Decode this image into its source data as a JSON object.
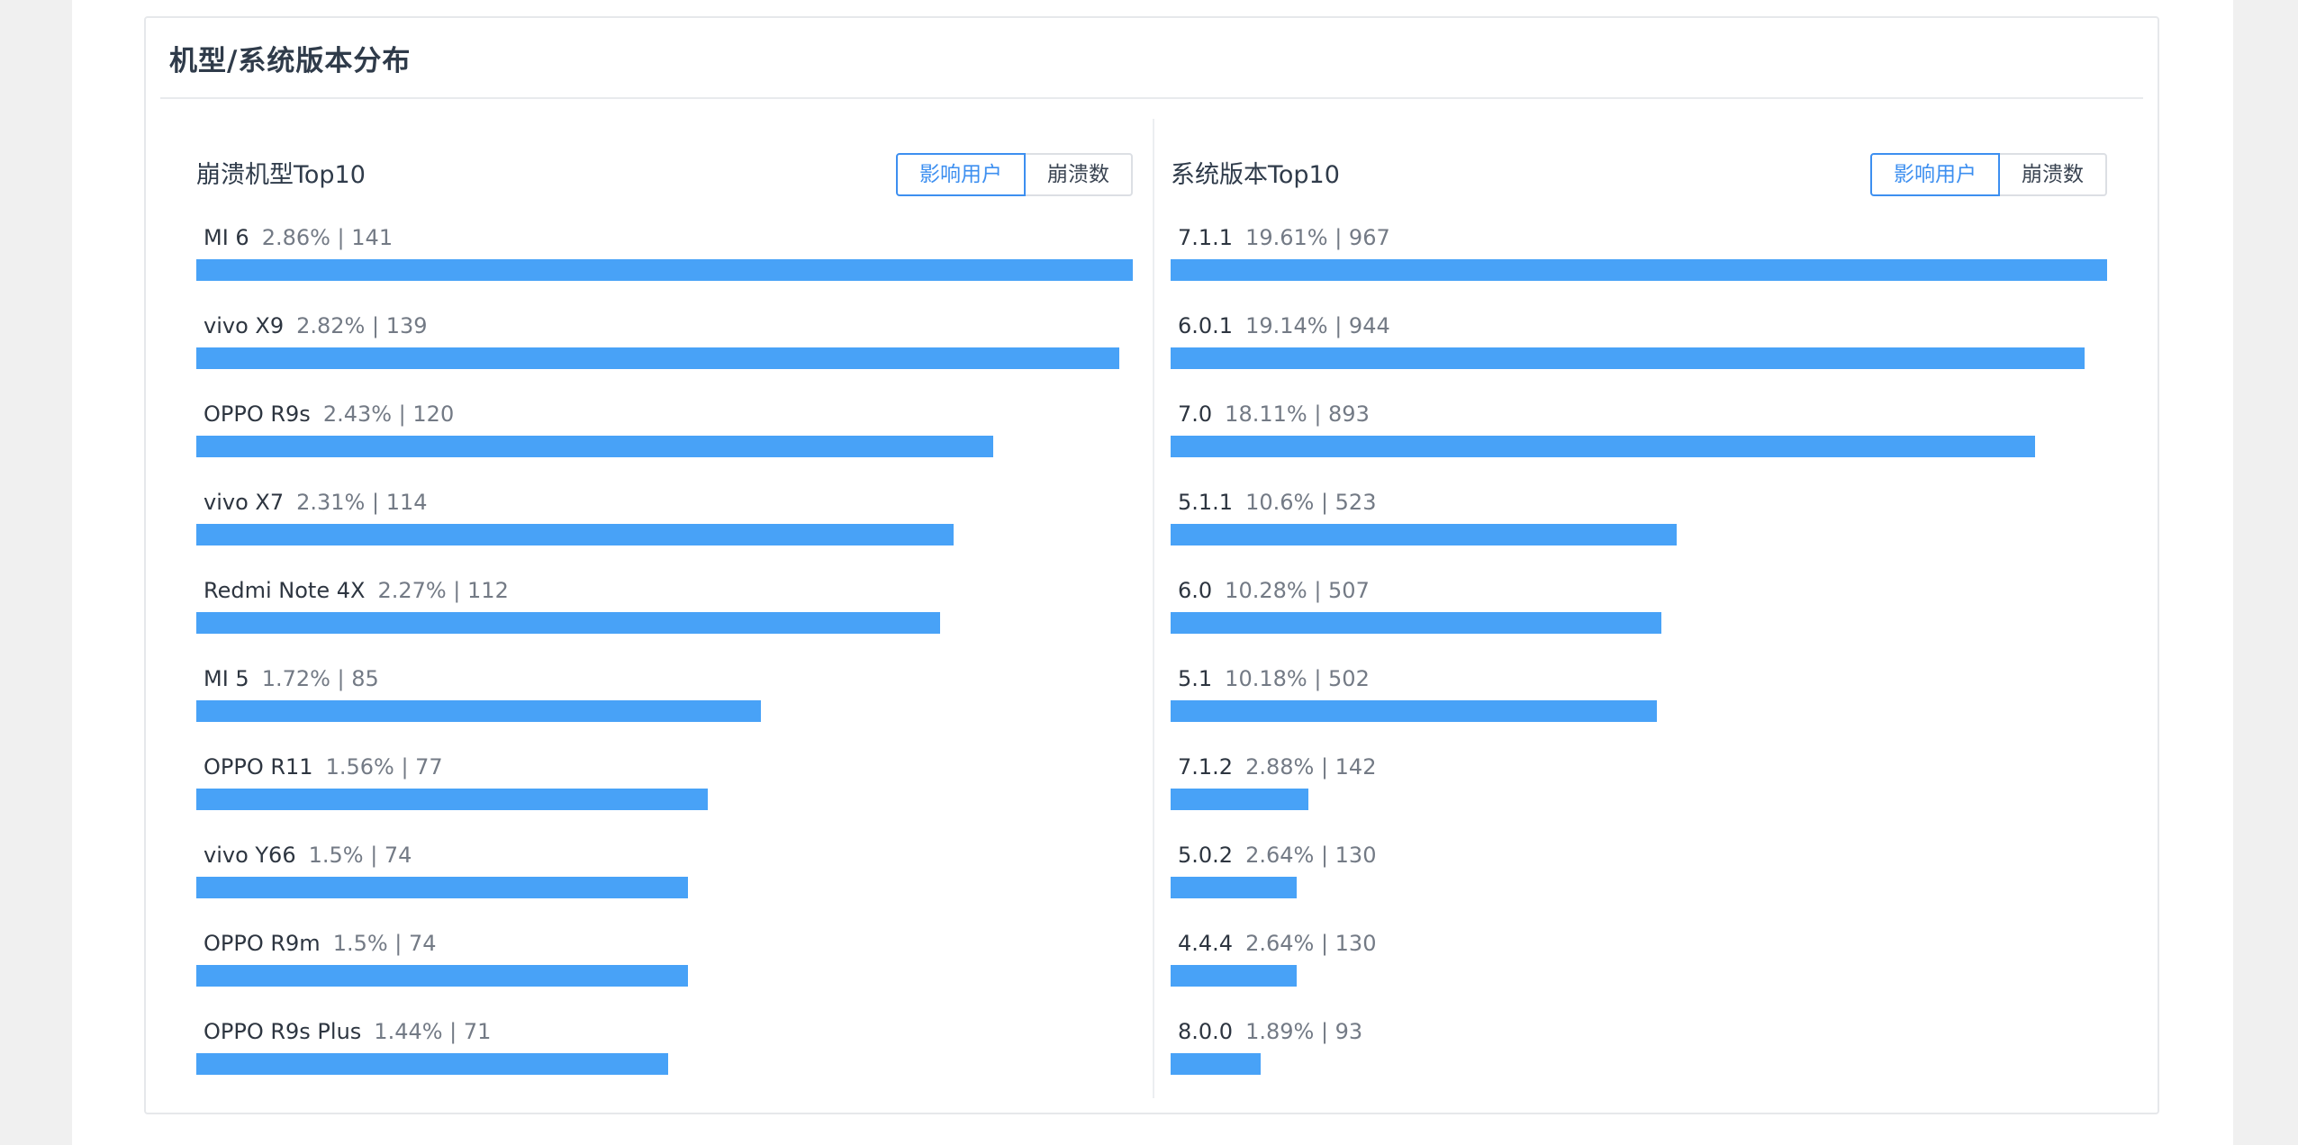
{
  "card": {
    "title": "机型/系统版本分布"
  },
  "colors": {
    "bar": "#48a2f7",
    "accent": "#3d8ff0"
  },
  "chart_data": [
    {
      "type": "bar",
      "orientation": "horizontal",
      "title": "崩溃机型Top10",
      "toggle": {
        "active": "影响用户",
        "other": "崩溃数"
      },
      "max": 141,
      "items": [
        {
          "name": "MI 6",
          "stats": "2.86% | 141",
          "percent": 2.86,
          "value": 141
        },
        {
          "name": "vivo X9",
          "stats": "2.82% | 139",
          "percent": 2.82,
          "value": 139
        },
        {
          "name": "OPPO R9s",
          "stats": "2.43% | 120",
          "percent": 2.43,
          "value": 120
        },
        {
          "name": "vivo X7",
          "stats": "2.31% | 114",
          "percent": 2.31,
          "value": 114
        },
        {
          "name": "Redmi Note 4X",
          "stats": "2.27% | 112",
          "percent": 2.27,
          "value": 112
        },
        {
          "name": "MI 5",
          "stats": "1.72% | 85",
          "percent": 1.72,
          "value": 85
        },
        {
          "name": "OPPO R11",
          "stats": "1.56% | 77",
          "percent": 1.56,
          "value": 77
        },
        {
          "name": "vivo Y66",
          "stats": "1.5% | 74",
          "percent": 1.5,
          "value": 74
        },
        {
          "name": "OPPO R9m",
          "stats": "1.5% | 74",
          "percent": 1.5,
          "value": 74
        },
        {
          "name": "OPPO R9s Plus",
          "stats": "1.44% | 71",
          "percent": 1.44,
          "value": 71
        }
      ]
    },
    {
      "type": "bar",
      "orientation": "horizontal",
      "title": "系统版本Top10",
      "toggle": {
        "active": "影响用户",
        "other": "崩溃数"
      },
      "max": 967,
      "items": [
        {
          "name": "7.1.1",
          "stats": "19.61% | 967",
          "percent": 19.61,
          "value": 967
        },
        {
          "name": "6.0.1",
          "stats": "19.14% | 944",
          "percent": 19.14,
          "value": 944
        },
        {
          "name": "7.0",
          "stats": "18.11% | 893",
          "percent": 18.11,
          "value": 893
        },
        {
          "name": "5.1.1",
          "stats": "10.6% | 523",
          "percent": 10.6,
          "value": 523
        },
        {
          "name": "6.0",
          "stats": "10.28% | 507",
          "percent": 10.28,
          "value": 507
        },
        {
          "name": "5.1",
          "stats": "10.18% | 502",
          "percent": 10.18,
          "value": 502
        },
        {
          "name": "7.1.2",
          "stats": "2.88% | 142",
          "percent": 2.88,
          "value": 142
        },
        {
          "name": "5.0.2",
          "stats": "2.64% | 130",
          "percent": 2.64,
          "value": 130
        },
        {
          "name": "4.4.4",
          "stats": "2.64% | 130",
          "percent": 2.64,
          "value": 130
        },
        {
          "name": "8.0.0",
          "stats": "1.89% | 93",
          "percent": 1.89,
          "value": 93
        }
      ]
    }
  ]
}
